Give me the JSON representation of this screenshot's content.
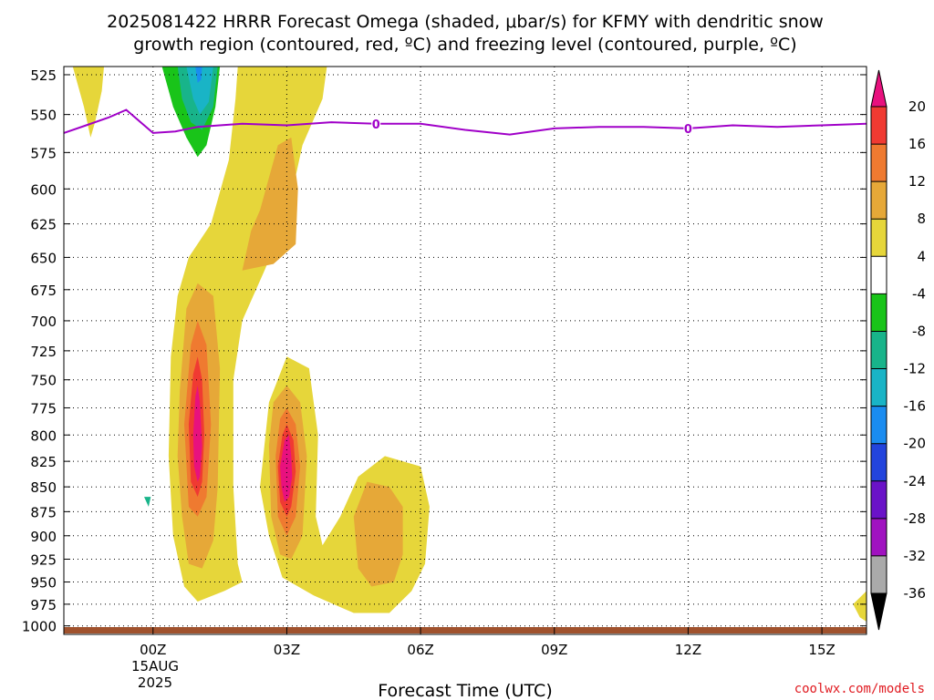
{
  "title_line1": "2025081422 HRRR Forecast Omega (shaded, μbar/s) for KFMY with dendritic snow",
  "title_line2": "growth region (contoured, red, ºC) and freezing level (contoured, purple, ºC)",
  "xlabel": "Forecast Time (UTC)",
  "credit": "coolwx.com/models",
  "date_line1": "15AUG",
  "date_line2": "2025",
  "chart_data": {
    "type": "heatmap",
    "title": "2025081422 HRRR Forecast Omega (shaded, μbar/s) for KFMY with dendritic snow growth region (contoured, red, ºC) and freezing level (contoured, purple, ºC)",
    "xlabel": "Forecast Time (UTC)",
    "ylabel": "",
    "x_unit": "hours relative to 15AUG2025 00Z",
    "xlim": [
      -2.0,
      16.0
    ],
    "y_scale": "log pressure (hPa, inverted)",
    "ylim": [
      1010,
      520
    ],
    "x_ticks": [
      {
        "value": 0,
        "label": "00Z"
      },
      {
        "value": 3,
        "label": "03Z"
      },
      {
        "value": 6,
        "label": "06Z"
      },
      {
        "value": 9,
        "label": "09Z"
      },
      {
        "value": 12,
        "label": "12Z"
      },
      {
        "value": 15,
        "label": "15Z"
      }
    ],
    "y_ticks": [
      525,
      550,
      575,
      600,
      625,
      650,
      675,
      700,
      725,
      750,
      775,
      800,
      825,
      850,
      875,
      900,
      925,
      950,
      975,
      1000
    ],
    "grid": true,
    "colorbar": {
      "levels": [
        "20",
        "16",
        "12",
        "8",
        "4",
        "-4",
        "-8",
        "-12",
        "-16",
        "-20",
        "-24",
        "-28",
        "-32",
        "-36"
      ],
      "colors": [
        "#e8117e",
        "#f03a32",
        "#ef7a30",
        "#e6a838",
        "#e6d63a",
        "#ffffff",
        "#19c419",
        "#18b48a",
        "#19b4c6",
        "#1a8cf0",
        "#2244dd",
        "#6a12c8",
        "#a012c0",
        "#aaaaaa"
      ],
      "top_triangle": "#e8117e",
      "bottom_triangle": "#000000"
    },
    "series": [
      {
        "name": "freezing level",
        "value": 0,
        "color": "#a000c8",
        "x": [
          -2.0,
          -1.5,
          -1.0,
          -0.6,
          0.0,
          0.5,
          1.0,
          2.0,
          3.0,
          4.0,
          5.0,
          6.0,
          7.0,
          8.0,
          9.0,
          10.0,
          11.0,
          12.0,
          13.0,
          14.0,
          15.0,
          16.0
        ],
        "y": [
          562,
          557,
          552,
          547,
          562,
          561,
          558,
          556,
          557,
          555,
          556,
          556,
          560,
          563,
          559,
          558,
          558,
          559,
          557,
          558,
          557,
          556
        ]
      },
      {
        "name": "surface",
        "color": "#a0522d"
      }
    ],
    "contour_labels": [
      {
        "x": 5.0,
        "y": 556,
        "text": "0"
      },
      {
        "x": 12.0,
        "y": 559,
        "text": "0"
      }
    ],
    "regions": [
      {
        "level": 4,
        "points": [
          [
            -1.8,
            520
          ],
          [
            -1.1,
            520
          ],
          [
            -1.15,
            535
          ],
          [
            -1.3,
            555
          ],
          [
            -1.4,
            565
          ],
          [
            -1.55,
            545
          ],
          [
            -1.7,
            530
          ]
        ]
      },
      {
        "level": 4,
        "points": [
          [
            1.9,
            520
          ],
          [
            3.9,
            520
          ],
          [
            3.8,
            540
          ],
          [
            3.35,
            570
          ],
          [
            3.0,
            620
          ],
          [
            2.5,
            660
          ],
          [
            2.0,
            700
          ],
          [
            1.8,
            750
          ],
          [
            1.8,
            850
          ],
          [
            1.9,
            930
          ],
          [
            2.0,
            950
          ],
          [
            1.6,
            960
          ],
          [
            1.0,
            972
          ],
          [
            0.7,
            955
          ],
          [
            0.45,
            900
          ],
          [
            0.35,
            820
          ],
          [
            0.4,
            730
          ],
          [
            0.55,
            680
          ],
          [
            0.8,
            650
          ],
          [
            1.3,
            625
          ],
          [
            1.7,
            580
          ],
          [
            1.85,
            540
          ]
        ]
      },
      {
        "level": 8,
        "points": [
          [
            2.4,
            615
          ],
          [
            2.8,
            570
          ],
          [
            3.1,
            565
          ],
          [
            3.25,
            600
          ],
          [
            3.2,
            640
          ],
          [
            2.7,
            655
          ],
          [
            2.0,
            660
          ],
          [
            2.2,
            630
          ]
        ]
      },
      {
        "level": 4,
        "points": [
          [
            2.4,
            850
          ],
          [
            2.6,
            770
          ],
          [
            3.0,
            730
          ],
          [
            3.5,
            740
          ],
          [
            3.7,
            800
          ],
          [
            3.65,
            880
          ],
          [
            3.8,
            910
          ],
          [
            4.2,
            880
          ],
          [
            4.6,
            840
          ],
          [
            5.2,
            820
          ],
          [
            6.0,
            830
          ],
          [
            6.2,
            870
          ],
          [
            6.1,
            930
          ],
          [
            5.8,
            960
          ],
          [
            5.3,
            985
          ],
          [
            4.5,
            985
          ],
          [
            3.6,
            965
          ],
          [
            2.9,
            945
          ],
          [
            2.6,
            900
          ]
        ]
      },
      {
        "level": 8,
        "points": [
          [
            0.6,
            760
          ],
          [
            0.75,
            690
          ],
          [
            1.0,
            670
          ],
          [
            1.35,
            680
          ],
          [
            1.5,
            740
          ],
          [
            1.45,
            850
          ],
          [
            1.35,
            905
          ],
          [
            1.1,
            935
          ],
          [
            0.8,
            930
          ],
          [
            0.65,
            880
          ],
          [
            0.55,
            820
          ]
        ]
      },
      {
        "level": 12,
        "points": [
          [
            0.7,
            790
          ],
          [
            0.85,
            720
          ],
          [
            1.0,
            700
          ],
          [
            1.2,
            720
          ],
          [
            1.3,
            790
          ],
          [
            1.2,
            860
          ],
          [
            1.0,
            880
          ],
          [
            0.8,
            870
          ]
        ]
      },
      {
        "level": 16,
        "points": [
          [
            0.8,
            790
          ],
          [
            0.9,
            745
          ],
          [
            1.0,
            730
          ],
          [
            1.1,
            750
          ],
          [
            1.15,
            800
          ],
          [
            1.1,
            845
          ],
          [
            1.0,
            860
          ],
          [
            0.85,
            845
          ]
        ]
      },
      {
        "level": 20,
        "points": [
          [
            0.9,
            800
          ],
          [
            0.95,
            765
          ],
          [
            1.0,
            755
          ],
          [
            1.05,
            770
          ],
          [
            1.1,
            810
          ],
          [
            1.05,
            840
          ],
          [
            1.0,
            845
          ],
          [
            0.92,
            830
          ]
        ]
      },
      {
        "level": 8,
        "points": [
          [
            2.6,
            810
          ],
          [
            2.7,
            770
          ],
          [
            3.0,
            755
          ],
          [
            3.3,
            770
          ],
          [
            3.45,
            820
          ],
          [
            3.35,
            900
          ],
          [
            3.1,
            925
          ],
          [
            2.85,
            920
          ],
          [
            2.65,
            880
          ]
        ]
      },
      {
        "level": 12,
        "points": [
          [
            2.75,
            820
          ],
          [
            2.85,
            785
          ],
          [
            3.0,
            775
          ],
          [
            3.2,
            790
          ],
          [
            3.3,
            830
          ],
          [
            3.2,
            880
          ],
          [
            3.0,
            900
          ],
          [
            2.8,
            880
          ]
        ]
      },
      {
        "level": 16,
        "points": [
          [
            2.8,
            830
          ],
          [
            2.9,
            800
          ],
          [
            3.0,
            790
          ],
          [
            3.15,
            805
          ],
          [
            3.2,
            835
          ],
          [
            3.1,
            870
          ],
          [
            3.0,
            880
          ],
          [
            2.85,
            865
          ]
        ]
      },
      {
        "level": 20,
        "points": [
          [
            2.85,
            830
          ],
          [
            2.95,
            805
          ],
          [
            3.05,
            800
          ],
          [
            3.1,
            820
          ],
          [
            3.12,
            840
          ],
          [
            3.05,
            860
          ],
          [
            2.95,
            865
          ],
          [
            2.88,
            850
          ]
        ]
      },
      {
        "level": 8,
        "points": [
          [
            4.5,
            880
          ],
          [
            4.8,
            845
          ],
          [
            5.3,
            850
          ],
          [
            5.6,
            870
          ],
          [
            5.6,
            920
          ],
          [
            5.4,
            950
          ],
          [
            4.9,
            955
          ],
          [
            4.6,
            935
          ]
        ]
      },
      {
        "level": -4,
        "points": [
          [
            -0.35,
            700
          ],
          [
            -0.1,
            660
          ],
          [
            0.05,
            680
          ],
          [
            0.15,
            760
          ],
          [
            0.1,
            860
          ],
          [
            0.25,
            900
          ],
          [
            0.0,
            905
          ],
          [
            -0.6,
            890
          ],
          [
            -0.55,
            860
          ],
          [
            -0.4,
            800
          ]
        ]
      },
      {
        "level": -12,
        "points": [
          [
            -0.2,
            860
          ],
          [
            -0.05,
            860
          ],
          [
            -0.1,
            870
          ]
        ]
      },
      {
        "level": -4,
        "points": [
          [
            -0.2,
            520
          ],
          [
            1.6,
            520
          ],
          [
            1.45,
            550
          ],
          [
            1.3,
            580
          ],
          [
            1.1,
            600
          ],
          [
            0.85,
            597
          ],
          [
            0.55,
            580
          ],
          [
            0.2,
            555
          ]
        ]
      },
      {
        "level": -8,
        "points": [
          [
            0.2,
            520
          ],
          [
            1.5,
            520
          ],
          [
            1.4,
            545
          ],
          [
            1.2,
            570
          ],
          [
            1.0,
            578
          ],
          [
            0.75,
            565
          ],
          [
            0.45,
            545
          ]
        ]
      },
      {
        "level": -12,
        "points": [
          [
            0.55,
            520
          ],
          [
            1.45,
            520
          ],
          [
            1.35,
            545
          ],
          [
            1.1,
            560
          ],
          [
            0.85,
            555
          ],
          [
            0.65,
            540
          ]
        ]
      },
      {
        "level": -16,
        "points": [
          [
            0.75,
            520
          ],
          [
            1.35,
            520
          ],
          [
            1.25,
            542
          ],
          [
            1.05,
            550
          ],
          [
            0.9,
            540
          ]
        ]
      },
      {
        "level": -20,
        "points": [
          [
            0.95,
            520
          ],
          [
            1.1,
            520
          ],
          [
            1.08,
            528
          ],
          [
            1.0,
            530
          ]
        ]
      },
      {
        "level": -4,
        "points": [
          [
            1.95,
            785
          ],
          [
            2.0,
            780
          ],
          [
            2.05,
            815
          ],
          [
            2.0,
            840
          ],
          [
            1.95,
            820
          ]
        ]
      },
      {
        "level": -4,
        "points": [
          [
            3.95,
            795
          ],
          [
            4.15,
            800
          ],
          [
            4.1,
            860
          ],
          [
            4.0,
            890
          ],
          [
            3.9,
            870
          ],
          [
            3.95,
            830
          ]
        ]
      },
      {
        "level": -4,
        "points": [
          [
            4.8,
            760
          ],
          [
            5.0,
            725
          ],
          [
            5.25,
            750
          ],
          [
            5.15,
            780
          ],
          [
            4.9,
            780
          ]
        ]
      },
      {
        "level": -4,
        "points": [
          [
            6.95,
            940
          ],
          [
            7.1,
            935
          ],
          [
            7.3,
            960
          ],
          [
            7.15,
            990
          ],
          [
            7.05,
            985
          ],
          [
            6.95,
            965
          ]
        ]
      },
      {
        "level": -4,
        "points": [
          [
            15.4,
            875
          ],
          [
            15.6,
            845
          ],
          [
            16.0,
            830
          ],
          [
            16.0,
            895
          ],
          [
            15.7,
            890
          ]
        ]
      },
      {
        "level": 4,
        "points": [
          [
            15.7,
            975
          ],
          [
            16.0,
            960
          ],
          [
            16.0,
            995
          ],
          [
            15.85,
            990
          ]
        ]
      }
    ]
  }
}
